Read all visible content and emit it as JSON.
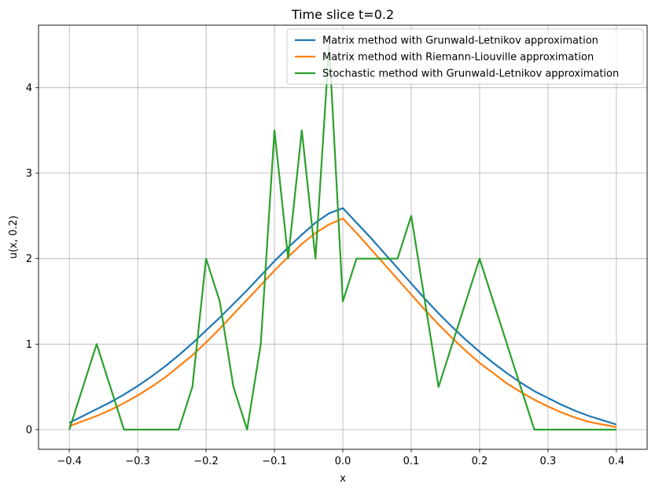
{
  "chart_data": {
    "type": "line",
    "title": "Time slice t=0.2",
    "xlabel": "x",
    "ylabel": "u(x, 0.2)",
    "xlim": [
      -0.445,
      0.445
    ],
    "ylim": [
      -0.23,
      4.73
    ],
    "xticks": [
      -0.4,
      -0.3,
      -0.2,
      -0.1,
      0.0,
      0.1,
      0.2,
      0.3,
      0.4
    ],
    "xtick_labels": [
      "−0.4",
      "−0.3",
      "−0.2",
      "−0.1",
      "0.0",
      "0.1",
      "0.2",
      "0.3",
      "0.4"
    ],
    "yticks": [
      0,
      1,
      2,
      3,
      4
    ],
    "ytick_labels": [
      "0",
      "1",
      "2",
      "3",
      "4"
    ],
    "grid": true,
    "legend_position": "top-right",
    "series": [
      {
        "name": "Matrix method with Grunwald-Letnikov approximation",
        "color": "#1f77b4",
        "x": [
          -0.4,
          -0.38,
          -0.36,
          -0.34,
          -0.32,
          -0.3,
          -0.28,
          -0.26,
          -0.24,
          -0.22,
          -0.2,
          -0.18,
          -0.16,
          -0.14,
          -0.12,
          -0.1,
          -0.08,
          -0.06,
          -0.04,
          -0.02,
          0.0,
          0.02,
          0.04,
          0.06,
          0.08,
          0.1,
          0.12,
          0.14,
          0.16,
          0.18,
          0.2,
          0.22,
          0.24,
          0.26,
          0.28,
          0.3,
          0.32,
          0.34,
          0.36,
          0.38,
          0.4
        ],
        "y": [
          0.08,
          0.16,
          0.24,
          0.32,
          0.41,
          0.51,
          0.62,
          0.74,
          0.87,
          1.01,
          1.16,
          1.31,
          1.47,
          1.63,
          1.8,
          1.97,
          2.13,
          2.28,
          2.42,
          2.53,
          2.59,
          2.42,
          2.25,
          2.07,
          1.89,
          1.71,
          1.53,
          1.36,
          1.2,
          1.05,
          0.91,
          0.78,
          0.66,
          0.55,
          0.45,
          0.37,
          0.29,
          0.22,
          0.16,
          0.11,
          0.06
        ]
      },
      {
        "name": "Matrix method with Riemann-Liouville approximation",
        "color": "#ff7f0e",
        "x": [
          -0.4,
          -0.38,
          -0.36,
          -0.34,
          -0.32,
          -0.3,
          -0.28,
          -0.26,
          -0.24,
          -0.22,
          -0.2,
          -0.18,
          -0.16,
          -0.14,
          -0.12,
          -0.1,
          -0.08,
          -0.06,
          -0.04,
          -0.02,
          0.0,
          0.02,
          0.04,
          0.06,
          0.08,
          0.1,
          0.12,
          0.14,
          0.16,
          0.18,
          0.2,
          0.22,
          0.24,
          0.26,
          0.28,
          0.3,
          0.32,
          0.34,
          0.36,
          0.38,
          0.4
        ],
        "y": [
          0.04,
          0.1,
          0.16,
          0.23,
          0.31,
          0.4,
          0.5,
          0.61,
          0.74,
          0.87,
          1.02,
          1.18,
          1.35,
          1.52,
          1.69,
          1.86,
          2.02,
          2.17,
          2.3,
          2.4,
          2.47,
          2.3,
          2.12,
          1.94,
          1.76,
          1.58,
          1.4,
          1.23,
          1.07,
          0.92,
          0.78,
          0.66,
          0.54,
          0.44,
          0.35,
          0.27,
          0.2,
          0.14,
          0.09,
          0.06,
          0.03
        ]
      },
      {
        "name": "Stochastic method with Grunwald-Letnikov approximation",
        "color": "#2ca02c",
        "x": [
          -0.4,
          -0.38,
          -0.36,
          -0.34,
          -0.32,
          -0.3,
          -0.28,
          -0.26,
          -0.24,
          -0.22,
          -0.2,
          -0.18,
          -0.16,
          -0.14,
          -0.12,
          -0.1,
          -0.08,
          -0.06,
          -0.04,
          -0.02,
          0.0,
          0.02,
          0.04,
          0.06,
          0.08,
          0.1,
          0.12,
          0.14,
          0.16,
          0.18,
          0.2,
          0.22,
          0.24,
          0.26,
          0.28,
          0.3,
          0.32,
          0.34,
          0.36,
          0.38,
          0.4
        ],
        "y": [
          0.0,
          0.5,
          1.0,
          0.5,
          0.0,
          0.0,
          0.0,
          0.0,
          0.0,
          0.5,
          2.0,
          1.5,
          0.5,
          0.0,
          1.0,
          3.5,
          2.0,
          3.5,
          2.0,
          4.5,
          1.5,
          2.0,
          2.0,
          2.0,
          2.0,
          2.5,
          1.5,
          0.5,
          1.0,
          1.5,
          2.0,
          1.5,
          1.0,
          0.5,
          0.0,
          0.0,
          0.0,
          0.0,
          0.0,
          0.0,
          0.0
        ]
      }
    ]
  }
}
